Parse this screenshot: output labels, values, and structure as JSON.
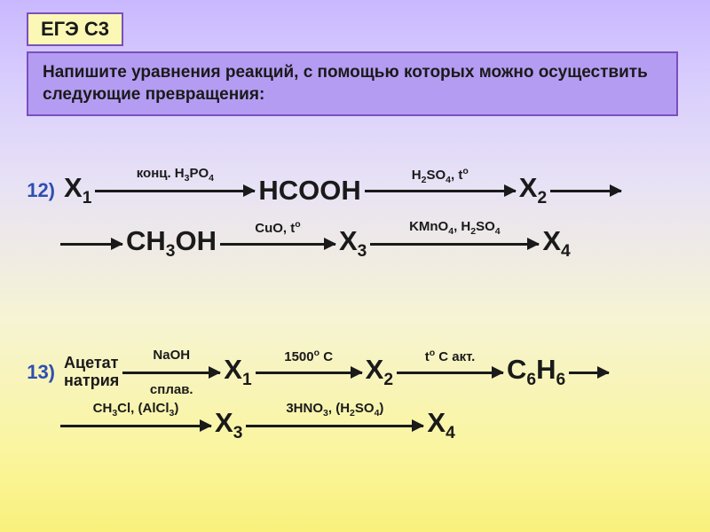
{
  "colors": {
    "badge_bg": "#fbf8b5",
    "badge_border": "#7a4fbf",
    "instruction_bg": "#b49cf2",
    "instruction_border": "#7a4fbf",
    "number_color": "#2f4fb0",
    "text_color": "#1a1a1a",
    "bg_gradient_top": "#c9b8ff",
    "bg_gradient_bottom": "#f9f17c"
  },
  "fonts": {
    "species_fontsize": 31,
    "condition_fontsize": 15,
    "instruction_fontsize": 19,
    "badge_fontsize": 22,
    "number_fontsize": 22
  },
  "badge": "ЕГЭ С3",
  "instruction": "Напишите уравнения реакций, с помощью которых можно осуществить следующие превращения:",
  "schemes": [
    {
      "number": "12)",
      "row1": {
        "s1": "X<sub>1</sub>",
        "a1_top": "конц. H<sub>3</sub>PO<sub>4</sub>",
        "s2": "HCOOH",
        "a2_top": "H<sub>2</sub>SO<sub>4</sub>, t<sup>o</sup>",
        "s3": "X<sub>2</sub>"
      },
      "row2": {
        "s1": "CH<sub>3</sub>OH",
        "a1_top": "CuO, t<sup>o</sup>",
        "s2": "X<sub>3</sub>",
        "a2_top": "KMnO<sub>4</sub>, H<sub>2</sub>SO<sub>4</sub>",
        "s3": "X<sub>4</sub>"
      }
    },
    {
      "number": "13)",
      "row1": {
        "lead": "Ацетат<br>натрия",
        "a0_top": "NaOH",
        "a0_bot": "сплав.",
        "s1": "X<sub>1</sub>",
        "a1_top": "1500<sup>o</sup> C",
        "s2": "X<sub>2</sub>",
        "a2_top": "t<sup>o</sup> C акт.",
        "s3": "C<sub>6</sub>H<sub>6</sub>"
      },
      "row2": {
        "a0_top": "CH<sub>3</sub>Cl, (AlCl<sub>3</sub>)",
        "s1": "X<sub>3</sub>",
        "a1_top": "3HNO<sub>3</sub>, (H<sub>2</sub>SO<sub>4</sub>)",
        "s2": "X<sub>4</sub>"
      }
    }
  ]
}
